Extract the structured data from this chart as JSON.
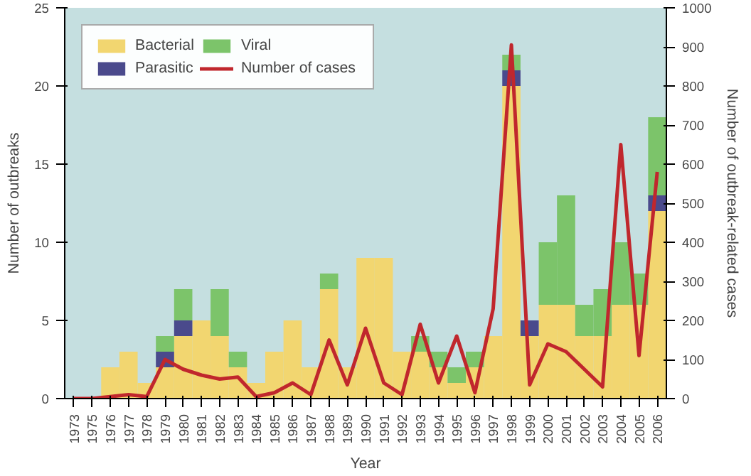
{
  "chart_data": {
    "type": "bar",
    "stacked": true,
    "xlabel": "Year",
    "ylabel": "Number of outbreaks",
    "y2label": "Number of outbreak-related cases",
    "categories": [
      "1973",
      "1975",
      "1976",
      "1977",
      "1978",
      "1979",
      "1980",
      "1981",
      "1982",
      "1983",
      "1984",
      "1985",
      "1986",
      "1987",
      "1988",
      "1989",
      "1990",
      "1991",
      "1992",
      "1993",
      "1994",
      "1995",
      "1996",
      "1997",
      "1998",
      "1999",
      "2000",
      "2001",
      "2002",
      "2003",
      "2004",
      "2005",
      "2006"
    ],
    "series": [
      {
        "name": "Bacterial",
        "color": "#f2d670",
        "values": [
          0,
          0,
          2,
          3,
          1,
          2,
          4,
          5,
          4,
          2,
          1,
          3,
          5,
          2,
          7,
          2,
          9,
          9,
          3,
          3,
          2,
          1,
          2,
          4,
          20,
          4,
          6,
          6,
          4,
          4,
          6,
          6,
          12
        ]
      },
      {
        "name": "Parasitic",
        "color": "#4a4a8c",
        "values": [
          0,
          0,
          0,
          0,
          0,
          1,
          1,
          0,
          0,
          0,
          0,
          0,
          0,
          0,
          0,
          0,
          0,
          0,
          0,
          0,
          0,
          0,
          0,
          0,
          1,
          1,
          0,
          0,
          0,
          0,
          0,
          0,
          1
        ]
      },
      {
        "name": "Viral",
        "color": "#7cc46a",
        "values": [
          0,
          0,
          0,
          0,
          0,
          1,
          2,
          0,
          3,
          1,
          0,
          0,
          0,
          0,
          1,
          0,
          0,
          0,
          0,
          1,
          1,
          1,
          1,
          0,
          1,
          0,
          4,
          7,
          2,
          3,
          4,
          2,
          5
        ]
      },
      {
        "name": "Number of cases",
        "type": "line",
        "axis": "y2",
        "color": "#c0272d",
        "values": [
          0,
          0,
          5,
          10,
          5,
          100,
          75,
          60,
          50,
          55,
          5,
          15,
          40,
          10,
          150,
          35,
          180,
          40,
          10,
          190,
          40,
          160,
          15,
          230,
          905,
          35,
          140,
          120,
          75,
          30,
          650,
          110,
          580
        ]
      }
    ],
    "ylim": [
      0,
      25
    ],
    "yticks": [
      0,
      5,
      10,
      15,
      20,
      25
    ],
    "y2lim": [
      0,
      1000
    ],
    "y2ticks": [
      0,
      100,
      200,
      300,
      400,
      500,
      600,
      700,
      800,
      900,
      1000
    ],
    "legend": "top left",
    "grid": false
  }
}
